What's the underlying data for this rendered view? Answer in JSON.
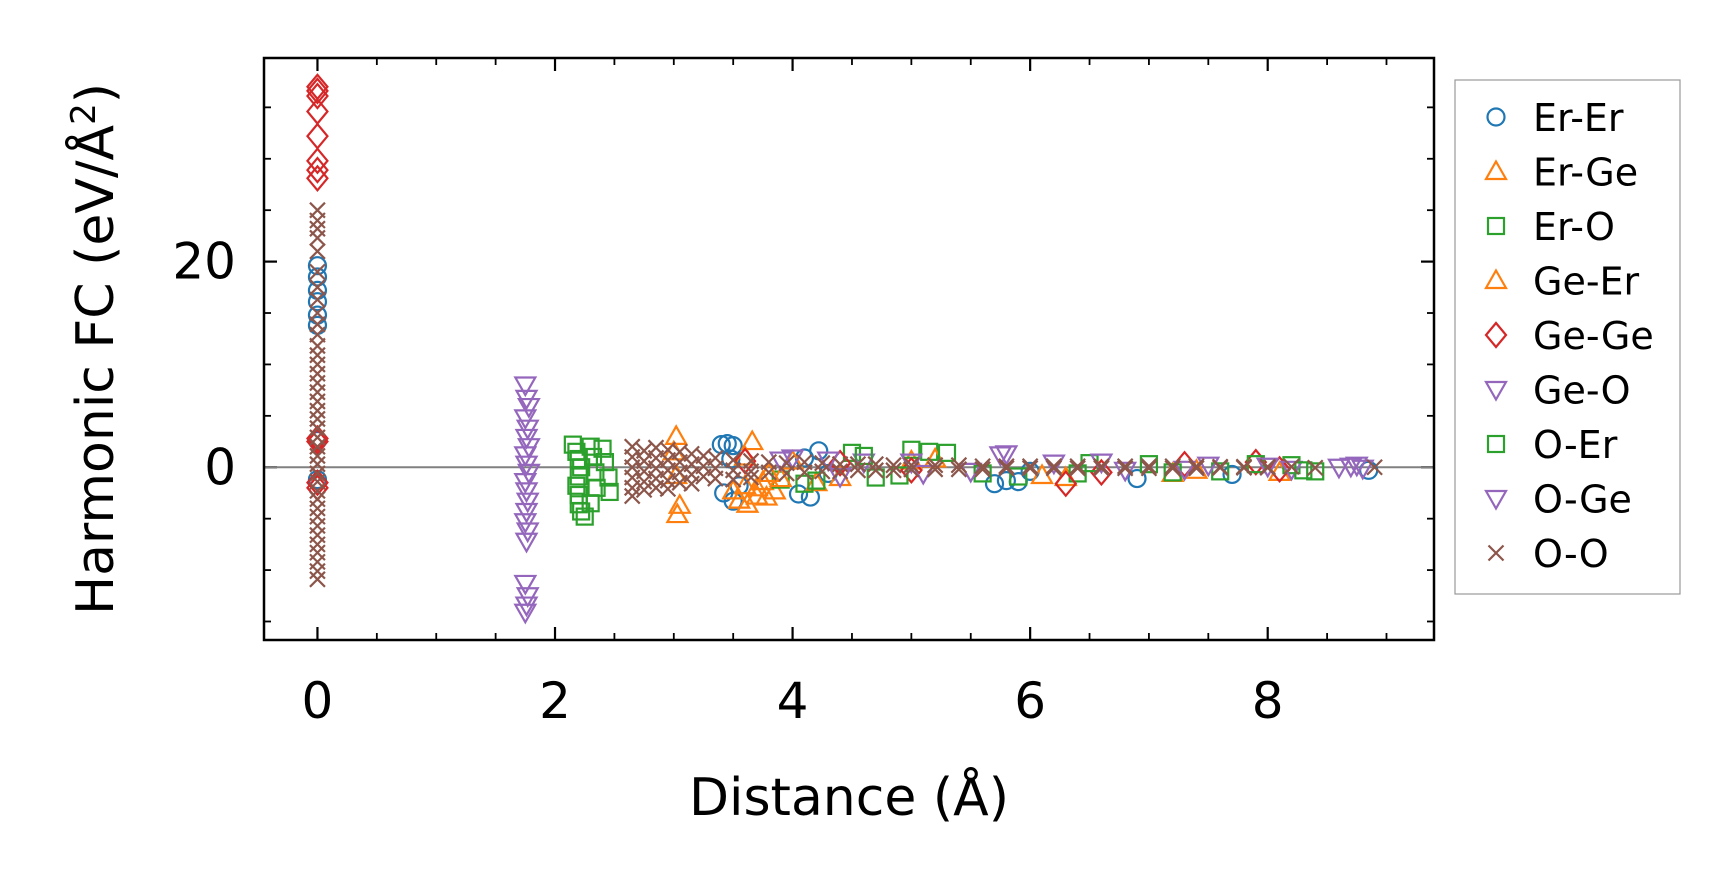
{
  "chart_data": {
    "type": "scatter",
    "title": "",
    "xlabel": "Distance (Å)",
    "ylabel_main": "Harmonic FC (eV/Å",
    "ylabel_sup": "2",
    "ylabel_close": ")",
    "xlim": [
      -0.45,
      9.4
    ],
    "ylim": [
      -16.8,
      39.8
    ],
    "xticks": [
      0,
      2,
      4,
      6,
      8
    ],
    "xtick_labels": [
      "0",
      "2",
      "4",
      "6",
      "8"
    ],
    "yticks": [
      0,
      20
    ],
    "ytick_labels": [
      "0",
      "20"
    ],
    "x_minor_step": 0.5,
    "y_minor_step": 5,
    "hline_y": 0,
    "grid": false,
    "legend_position": "outside-right",
    "colors": {
      "blue": "#1f77b4",
      "orange": "#ff7f0e",
      "green": "#2ca02c",
      "red": "#d62728",
      "purple": "#9467bd",
      "brown": "#8c564b",
      "zero_line": "#808080"
    },
    "series": [
      {
        "name": "Er-Er",
        "marker": "circle",
        "color": "#1f77b4",
        "points": [
          [
            0,
            19.6
          ],
          [
            0,
            18.5
          ],
          [
            0,
            17.2
          ],
          [
            0,
            16.1
          ],
          [
            0,
            14.8
          ],
          [
            0,
            13.8
          ],
          [
            0,
            2.6
          ],
          [
            0,
            -1.2
          ],
          [
            3.4,
            2.2
          ],
          [
            3.45,
            2.3
          ],
          [
            3.5,
            2.1
          ],
          [
            3.42,
            -2.5
          ],
          [
            3.5,
            -3.3
          ],
          [
            3.55,
            -1.8
          ],
          [
            3.48,
            0.8
          ],
          [
            4.05,
            -2.6
          ],
          [
            4.15,
            -2.9
          ],
          [
            4.22,
            1.6
          ],
          [
            4.1,
            0.9
          ],
          [
            4.3,
            -0.6
          ],
          [
            5.7,
            -1.6
          ],
          [
            5.8,
            -1.3
          ],
          [
            5.9,
            -1.4
          ],
          [
            6.0,
            -0.4
          ],
          [
            6.9,
            -1.1
          ],
          [
            7.7,
            -0.7
          ],
          [
            8.85,
            -0.3
          ]
        ]
      },
      {
        "name": "Er-Ge",
        "marker": "triangle-up",
        "color": "#ff7f0e",
        "points": [
          [
            3.02,
            3.0
          ],
          [
            3.03,
            -4.6
          ],
          [
            3.05,
            -3.7
          ],
          [
            3.0,
            1.5
          ],
          [
            3.02,
            -0.8
          ],
          [
            3.55,
            -3.2
          ],
          [
            3.62,
            -3.6
          ],
          [
            3.7,
            -2.8
          ],
          [
            3.78,
            -2.9
          ],
          [
            3.66,
            2.5
          ],
          [
            3.6,
            1.0
          ],
          [
            3.75,
            -1.4
          ],
          [
            3.85,
            -2.3
          ],
          [
            4.2,
            -1.5
          ],
          [
            5.0,
            0.6
          ],
          [
            6.3,
            -1.0
          ],
          [
            7.2,
            -0.6
          ],
          [
            8.1,
            -0.5
          ]
        ]
      },
      {
        "name": "Er-O",
        "marker": "square",
        "color": "#2ca02c",
        "points": [
          [
            2.15,
            2.2
          ],
          [
            2.18,
            1.5
          ],
          [
            2.2,
            0.8
          ],
          [
            2.22,
            0.0
          ],
          [
            2.2,
            -0.9
          ],
          [
            2.18,
            -1.8
          ],
          [
            2.2,
            -2.7
          ],
          [
            2.2,
            -3.6
          ],
          [
            2.22,
            -4.3
          ],
          [
            2.25,
            -4.8
          ],
          [
            2.3,
            2.0
          ],
          [
            2.32,
            1.0
          ],
          [
            2.34,
            -0.5
          ],
          [
            2.35,
            -2.0
          ],
          [
            2.3,
            -3.5
          ],
          [
            2.4,
            1.8
          ],
          [
            2.42,
            0.5
          ],
          [
            2.45,
            -1.0
          ],
          [
            2.46,
            -2.4
          ],
          [
            3.9,
            -1.2
          ],
          [
            4.1,
            -1.6
          ],
          [
            4.5,
            1.4
          ],
          [
            4.7,
            -1.0
          ],
          [
            5.0,
            1.7
          ],
          [
            5.15,
            1.5
          ],
          [
            5.9,
            -0.9
          ],
          [
            6.4,
            -0.6
          ],
          [
            7.0,
            0.3
          ],
          [
            7.6,
            -0.4
          ],
          [
            8.2,
            0.2
          ],
          [
            8.4,
            -0.4
          ]
        ]
      },
      {
        "name": "Ge-Er",
        "marker": "triangle-up",
        "color": "#ff7f0e",
        "points": [
          [
            3.5,
            -2.3
          ],
          [
            3.6,
            -1.8
          ],
          [
            3.7,
            -2.0
          ],
          [
            3.8,
            -0.6
          ],
          [
            3.9,
            -1.1
          ],
          [
            4.0,
            0.6
          ],
          [
            4.4,
            -1.0
          ],
          [
            5.2,
            0.8
          ],
          [
            6.1,
            -0.8
          ],
          [
            7.4,
            -0.3
          ]
        ]
      },
      {
        "name": "Ge-Ge",
        "marker": "diamond",
        "color": "#d62728",
        "points": [
          [
            0,
            37.0
          ],
          [
            0,
            36.6
          ],
          [
            0,
            36.1
          ],
          [
            0,
            34.6
          ],
          [
            0,
            32.2
          ],
          [
            0,
            29.8
          ],
          [
            0,
            28.9
          ],
          [
            0,
            28.1
          ],
          [
            0,
            2.8
          ],
          [
            0,
            2.5
          ],
          [
            0,
            -1.5
          ],
          [
            0,
            -2.0
          ],
          [
            3.6,
            0.6
          ],
          [
            4.4,
            0.4
          ],
          [
            5.0,
            -0.3
          ],
          [
            6.3,
            -1.6
          ],
          [
            6.6,
            -0.5
          ],
          [
            7.3,
            0.3
          ],
          [
            7.9,
            0.5
          ],
          [
            8.1,
            -0.2
          ]
        ]
      },
      {
        "name": "Ge-O",
        "marker": "triangle-down",
        "color": "#9467bd",
        "points": [
          [
            1.75,
            8.0
          ],
          [
            1.76,
            6.7
          ],
          [
            1.78,
            5.9
          ],
          [
            1.75,
            4.8
          ],
          [
            1.77,
            3.8
          ],
          [
            1.76,
            2.9
          ],
          [
            1.78,
            2.0
          ],
          [
            1.75,
            1.2
          ],
          [
            1.76,
            0.3
          ],
          [
            1.78,
            -0.5
          ],
          [
            1.75,
            -1.4
          ],
          [
            1.76,
            -2.3
          ],
          [
            1.77,
            -3.3
          ],
          [
            1.76,
            -4.3
          ],
          [
            1.75,
            -5.3
          ],
          [
            1.77,
            -6.2
          ],
          [
            1.76,
            -7.2
          ],
          [
            1.75,
            -11.3
          ],
          [
            1.77,
            -12.5
          ],
          [
            1.76,
            -13.4
          ],
          [
            1.75,
            -14.1
          ],
          [
            4.0,
            0.9
          ],
          [
            4.3,
            0.7
          ],
          [
            4.6,
            0.5
          ],
          [
            5.1,
            -0.6
          ],
          [
            5.75,
            1.2
          ],
          [
            6.2,
            0.4
          ],
          [
            6.8,
            -0.3
          ],
          [
            7.5,
            0.2
          ],
          [
            8.2,
            -0.2
          ],
          [
            8.7,
            0.1
          ],
          [
            8.8,
            -0.1
          ]
        ]
      },
      {
        "name": "O-Er",
        "marker": "square",
        "color": "#2ca02c",
        "points": [
          [
            4.2,
            -1.3
          ],
          [
            4.6,
            1.1
          ],
          [
            4.9,
            -0.8
          ],
          [
            5.3,
            1.4
          ],
          [
            5.6,
            -0.6
          ],
          [
            6.5,
            0.4
          ],
          [
            7.2,
            -0.5
          ],
          [
            7.9,
            0.3
          ],
          [
            8.3,
            -0.3
          ]
        ]
      },
      {
        "name": "O-Ge",
        "marker": "triangle-down",
        "color": "#9467bd",
        "points": [
          [
            3.9,
            0.7
          ],
          [
            4.4,
            -0.9
          ],
          [
            5.0,
            0.5
          ],
          [
            5.5,
            -0.4
          ],
          [
            5.8,
            1.3
          ],
          [
            6.6,
            0.5
          ],
          [
            7.3,
            -0.2
          ],
          [
            8.0,
            0.1
          ],
          [
            8.6,
            0.0
          ],
          [
            8.75,
            0.2
          ]
        ]
      },
      {
        "name": "O-O",
        "marker": "x",
        "color": "#8c564b",
        "points": [
          [
            0,
            25.0
          ],
          [
            0,
            24.0
          ],
          [
            0,
            23.2
          ],
          [
            0,
            22.3
          ],
          [
            0,
            21.0
          ],
          [
            0,
            19.0
          ],
          [
            0,
            17.5
          ],
          [
            0,
            16.3
          ],
          [
            0,
            15.0
          ],
          [
            0,
            13.9
          ],
          [
            0,
            12.9
          ],
          [
            0,
            11.8
          ],
          [
            0,
            10.9
          ],
          [
            0,
            10.0
          ],
          [
            0,
            9.1
          ],
          [
            0,
            8.2
          ],
          [
            0,
            7.3
          ],
          [
            0,
            6.4
          ],
          [
            0,
            5.5
          ],
          [
            0,
            4.7
          ],
          [
            0,
            3.8
          ],
          [
            0,
            2.9
          ],
          [
            0,
            2.0
          ],
          [
            0,
            1.1
          ],
          [
            0,
            0.3
          ],
          [
            0,
            -0.6
          ],
          [
            0,
            -1.4
          ],
          [
            0,
            -2.3
          ],
          [
            0,
            -3.1
          ],
          [
            0,
            -4.0
          ],
          [
            0,
            -4.8
          ],
          [
            0,
            -5.7
          ],
          [
            0,
            -6.6
          ],
          [
            0,
            -7.5
          ],
          [
            0,
            -8.3
          ],
          [
            0,
            -9.2
          ],
          [
            0,
            -10.1
          ],
          [
            0,
            -10.9
          ],
          [
            2.65,
            2.0
          ],
          [
            2.65,
            1.0
          ],
          [
            2.65,
            0.0
          ],
          [
            2.65,
            -1.0
          ],
          [
            2.65,
            -2.0
          ],
          [
            2.65,
            -2.8
          ],
          [
            2.75,
            1.6
          ],
          [
            2.75,
            0.6
          ],
          [
            2.75,
            -0.4
          ],
          [
            2.75,
            -1.4
          ],
          [
            2.75,
            -2.2
          ],
          [
            2.85,
            1.9
          ],
          [
            2.85,
            0.9
          ],
          [
            2.85,
            -0.1
          ],
          [
            2.85,
            -1.1
          ],
          [
            2.85,
            -2.0
          ],
          [
            2.95,
            1.7
          ],
          [
            2.95,
            0.7
          ],
          [
            2.95,
            -0.3
          ],
          [
            2.95,
            -1.3
          ],
          [
            2.95,
            -2.1
          ],
          [
            3.05,
            1.5
          ],
          [
            3.05,
            0.5
          ],
          [
            3.05,
            -0.5
          ],
          [
            3.05,
            -1.5
          ],
          [
            3.15,
            1.3
          ],
          [
            3.15,
            0.3
          ],
          [
            3.15,
            -0.7
          ],
          [
            3.15,
            -1.6
          ],
          [
            3.25,
            1.1
          ],
          [
            3.25,
            0.1
          ],
          [
            3.25,
            -0.9
          ],
          [
            3.35,
            0.9
          ],
          [
            3.35,
            -0.1
          ],
          [
            3.35,
            -1.1
          ],
          [
            3.5,
            0.7
          ],
          [
            3.5,
            -0.3
          ],
          [
            3.5,
            -1.2
          ],
          [
            3.65,
            0.6
          ],
          [
            3.65,
            -0.4
          ],
          [
            3.65,
            -1.0
          ],
          [
            3.8,
            0.5
          ],
          [
            3.8,
            -0.5
          ],
          [
            3.95,
            0.4
          ],
          [
            3.95,
            -0.6
          ],
          [
            4.1,
            0.5
          ],
          [
            4.1,
            -0.5
          ],
          [
            4.25,
            0.4
          ],
          [
            4.25,
            -0.4
          ],
          [
            4.4,
            0.3
          ],
          [
            4.4,
            -0.4
          ],
          [
            4.55,
            0.3
          ],
          [
            4.55,
            -0.3
          ],
          [
            4.7,
            0.3
          ],
          [
            4.7,
            -0.3
          ],
          [
            4.85,
            0.2
          ],
          [
            4.85,
            -0.3
          ],
          [
            5.0,
            0.2
          ],
          [
            5.0,
            -0.2
          ],
          [
            5.2,
            0.2
          ],
          [
            5.2,
            -0.2
          ],
          [
            5.4,
            0.2
          ],
          [
            5.4,
            -0.2
          ],
          [
            5.6,
            0.1
          ],
          [
            5.6,
            -0.2
          ],
          [
            5.8,
            0.1
          ],
          [
            5.8,
            -0.1
          ],
          [
            6.0,
            0.1
          ],
          [
            6.0,
            -0.1
          ],
          [
            6.2,
            0.1
          ],
          [
            6.2,
            -0.1
          ],
          [
            6.4,
            0.1
          ],
          [
            6.4,
            -0.1
          ],
          [
            6.6,
            0.1
          ],
          [
            6.6,
            -0.1
          ],
          [
            6.8,
            0.1
          ],
          [
            6.8,
            -0.1
          ],
          [
            7.0,
            0.1
          ],
          [
            7.0,
            -0.1
          ],
          [
            7.2,
            0.1
          ],
          [
            7.2,
            -0.1
          ],
          [
            7.4,
            0.1
          ],
          [
            7.4,
            -0.1
          ],
          [
            7.6,
            0.05
          ],
          [
            7.6,
            -0.05
          ],
          [
            7.8,
            0.05
          ],
          [
            7.8,
            -0.05
          ],
          [
            8.0,
            0.05
          ],
          [
            8.0,
            -0.05
          ],
          [
            8.2,
            0.05
          ],
          [
            8.4,
            -0.05
          ],
          [
            8.9,
            0.0
          ]
        ]
      }
    ]
  }
}
